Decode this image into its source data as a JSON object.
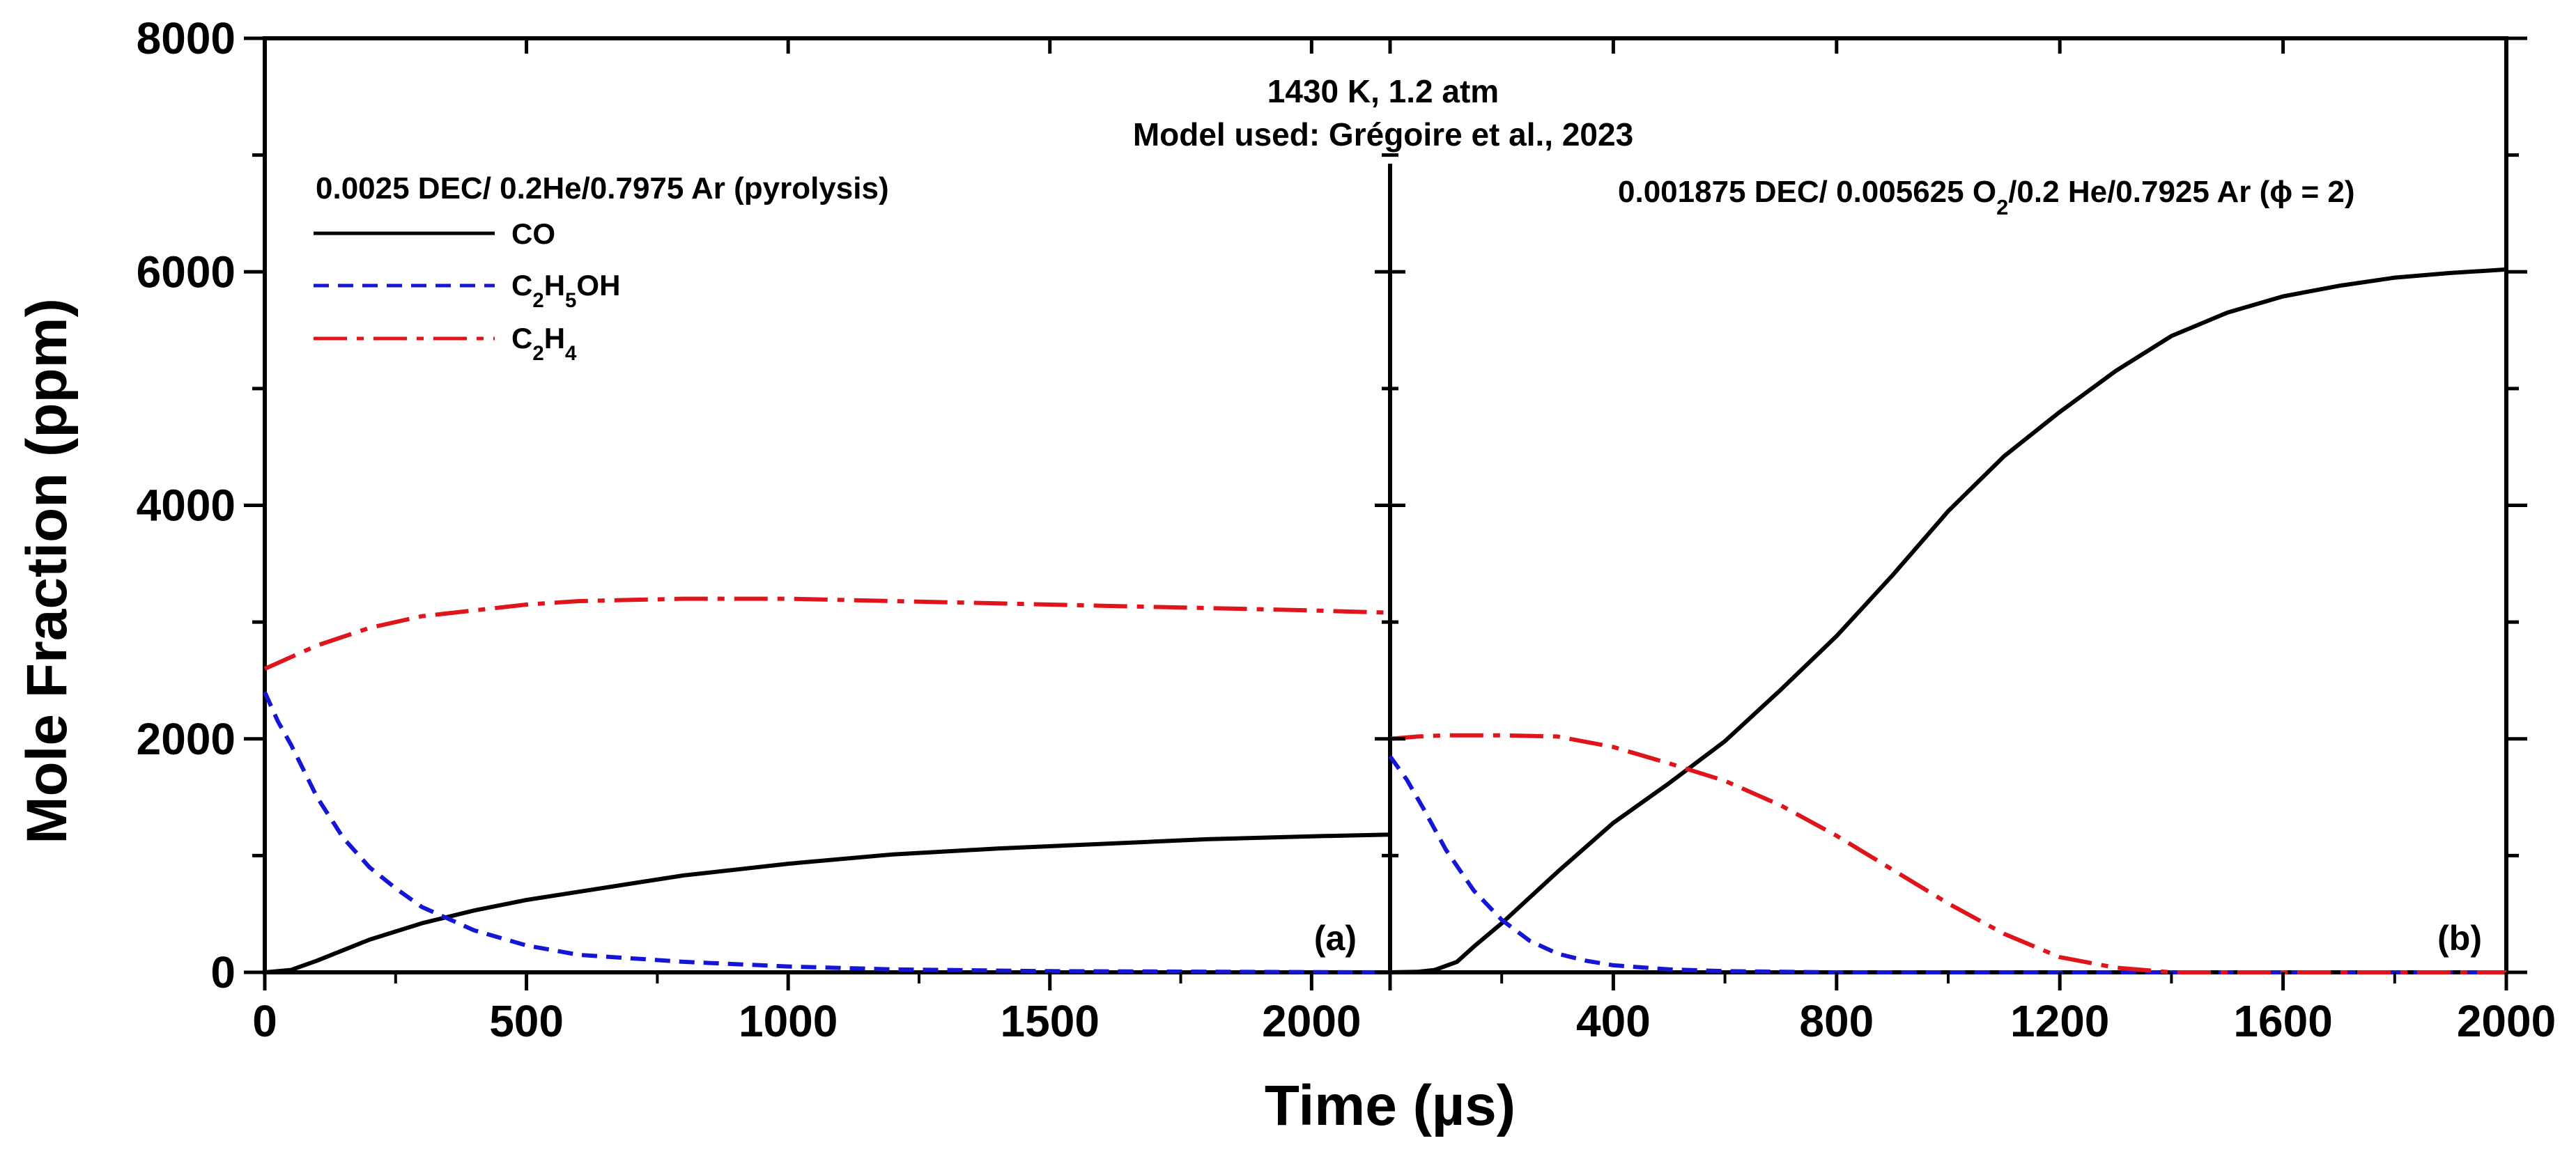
{
  "chart_data": {
    "type": "line",
    "title": [
      "1430 K, 1.2 atm",
      "Model used: Grégoire et al., 2023"
    ],
    "xlabel": "Time (µs)",
    "ylabel": "Mole Fraction (ppm)",
    "ylim": [
      0,
      8000
    ],
    "yticks": [
      "0",
      "2000",
      "4000",
      "6000",
      "8000"
    ],
    "legend": [
      {
        "key": "co",
        "label": "CO",
        "color": "#000000",
        "dash": "solid"
      },
      {
        "key": "c2h5oh",
        "label": "C2H5OH",
        "color": "#1515d6",
        "dash": "dashed"
      },
      {
        "key": "c2h4",
        "label": "C2H4",
        "color": "#e0151b",
        "dash": "dashdot"
      }
    ],
    "panels": [
      {
        "id": "a",
        "tag": "(a)",
        "condition": "0.0025 DEC/ 0.2He/0.7975 Ar (pyrolysis)",
        "xlim": [
          0,
          2150
        ],
        "xticks": [
          "0",
          "500",
          "1000",
          "1500",
          "2000"
        ],
        "series": [
          {
            "name": "CO",
            "x": [
              0,
              50,
              100,
              200,
              300,
              400,
              500,
              600,
              800,
              1000,
              1200,
              1400,
              1600,
              1800,
              2000,
              2150
            ],
            "y": [
              0,
              20,
              100,
              280,
              420,
              530,
              620,
              690,
              830,
              930,
              1010,
              1060,
              1100,
              1140,
              1165,
              1180
            ]
          },
          {
            "name": "C2H5OH",
            "x": [
              0,
              25,
              50,
              100,
              150,
              200,
              250,
              300,
              400,
              500,
              600,
              800,
              1000,
              1200,
              1500,
              2150
            ],
            "y": [
              2400,
              2150,
              1950,
              1500,
              1150,
              900,
              720,
              560,
              360,
              230,
              150,
              90,
              50,
              25,
              10,
              0
            ]
          },
          {
            "name": "C2H4",
            "x": [
              0,
              50,
              100,
              200,
              300,
              400,
              500,
              600,
              800,
              1000,
              1200,
              1400,
              1600,
              1800,
              2000,
              2150
            ],
            "y": [
              2600,
              2700,
              2800,
              2950,
              3050,
              3100,
              3150,
              3180,
              3200,
              3200,
              3180,
              3160,
              3140,
              3120,
              3100,
              3080
            ]
          }
        ]
      },
      {
        "id": "b",
        "tag": "(b)",
        "condition": "0.001875 DEC/ 0.005625 O2/0.2 He/0.7925 Ar (ϕ = 2)",
        "xlim": [
          0,
          2000
        ],
        "xticks": [
          "",
          "400",
          "800",
          "1200",
          "1600",
          "2000"
        ],
        "series": [
          {
            "name": "CO",
            "x": [
              0,
              50,
              80,
              120,
              150,
              200,
              300,
              400,
              500,
              600,
              700,
              800,
              900,
              1000,
              1100,
              1200,
              1300,
              1400,
              1500,
              1600,
              1700,
              1800,
              1900,
              2000
            ],
            "y": [
              0,
              5,
              20,
              90,
              220,
              420,
              860,
              1280,
              1620,
              1980,
              2420,
              2880,
              3400,
              3950,
              4420,
              4800,
              5150,
              5450,
              5650,
              5790,
              5880,
              5950,
              5990,
              6020
            ]
          },
          {
            "name": "C2H5OH",
            "x": [
              0,
              30,
              60,
              100,
              150,
              200,
              250,
              300,
              350,
              400,
              500,
              600,
              800,
              2000
            ],
            "y": [
              1850,
              1650,
              1400,
              1050,
              700,
              450,
              270,
              160,
              100,
              60,
              25,
              10,
              0,
              0
            ]
          },
          {
            "name": "C2H4",
            "x": [
              0,
              50,
              100,
              200,
              300,
              400,
              500,
              600,
              700,
              800,
              900,
              1000,
              1100,
              1200,
              1300,
              1400,
              1500,
              1600,
              1700,
              1800,
              1900,
              2000
            ],
            "y": [
              2000,
              2020,
              2030,
              2030,
              2020,
              1930,
              1790,
              1640,
              1430,
              1170,
              880,
              590,
              330,
              130,
              40,
              0,
              0,
              0,
              0,
              0,
              0,
              0
            ]
          }
        ]
      }
    ]
  }
}
